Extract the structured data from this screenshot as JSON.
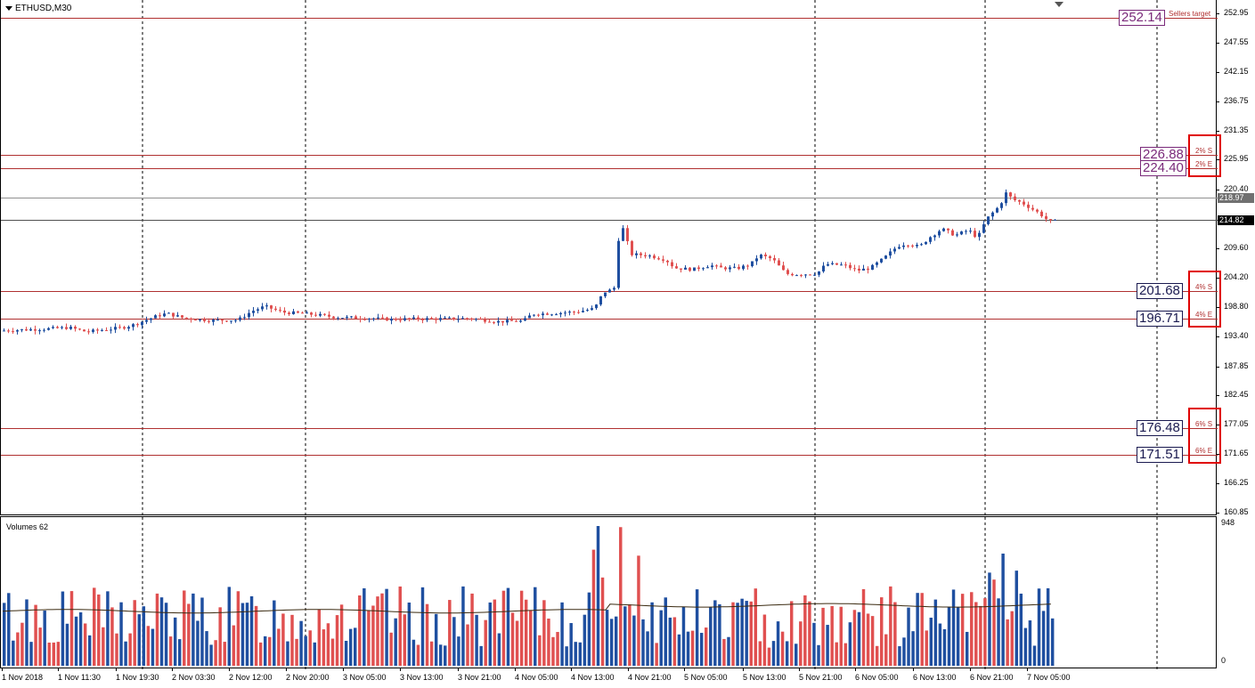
{
  "chart_title": "ETHUSD,M30",
  "volume_title": "Volumes 62",
  "colors": {
    "bull": "#1f4fa0",
    "bear": "#e05050",
    "level_line": "#b03030",
    "level_label": "#7a2a7a",
    "dark_label": "#1a1a50",
    "ma": "#3a2a10",
    "grid": "#000000"
  },
  "icons": {
    "collapse_arrow": "triangle-down",
    "shift_marker": "triangle-down"
  },
  "price_axis": {
    "min": 160.85,
    "max": 252.95,
    "ticks": [
      "252.95",
      "247.55",
      "242.15",
      "236.75",
      "231.35",
      "225.95",
      "220.40",
      "209.60",
      "204.20",
      "198.80",
      "193.40",
      "187.85",
      "182.45",
      "177.05",
      "171.65",
      "166.25",
      "160.85"
    ],
    "tick_values": [
      252.95,
      247.55,
      242.15,
      236.75,
      231.35,
      225.95,
      220.4,
      209.6,
      204.2,
      198.8,
      193.4,
      187.85,
      182.45,
      177.05,
      171.65,
      166.25,
      160.85
    ]
  },
  "volume_axis": {
    "max_label": "948",
    "min_label": "0",
    "max": 948
  },
  "current_prices": [
    {
      "value": 218.97,
      "label": "218.97",
      "bg": "#707070"
    },
    {
      "value": 214.82,
      "label": "214.82",
      "bg": "#000000"
    }
  ],
  "levels": [
    {
      "value": 252.14,
      "label": "252.14",
      "tag": "Sellers target",
      "style": "purple"
    },
    {
      "value": 226.88,
      "label": "226.88",
      "tag": "2% S",
      "style": "purple"
    },
    {
      "value": 224.4,
      "label": "224.40",
      "tag": "2% E",
      "style": "purple"
    },
    {
      "value": 201.68,
      "label": "201.68",
      "tag": "4% S",
      "style": "dark"
    },
    {
      "value": 196.71,
      "label": "196.71",
      "tag": "4% E",
      "style": "dark"
    },
    {
      "value": 176.48,
      "label": "176.48",
      "tag": "6% S",
      "style": "dark"
    },
    {
      "value": 171.51,
      "label": "171.51",
      "tag": "6% E",
      "style": "dark"
    }
  ],
  "time_labels": [
    "1 Nov 2018",
    "1 Nov 11:30",
    "1 Nov 19:30",
    "2 Nov 03:30",
    "2 Nov 12:00",
    "2 Nov 20:00",
    "3 Nov 05:00",
    "3 Nov 13:00",
    "3 Nov 21:00",
    "4 Nov 05:00",
    "4 Nov 13:00",
    "4 Nov 21:00",
    "5 Nov 05:00",
    "5 Nov 13:00",
    "5 Nov 21:00",
    "6 Nov 05:00",
    "6 Nov 13:00",
    "6 Nov 21:00",
    "7 Nov 05:00"
  ],
  "chart_data": {
    "type": "candlestick",
    "title": "ETHUSD,M30",
    "timeframe": "M30",
    "ylim": [
      160.85,
      252.95
    ],
    "period_separators": [
      "1 Nov 19:30",
      "2 Nov 20:00",
      "5 Nov 21:00",
      "6 Nov 21:00",
      "7 Nov 12:00"
    ],
    "price_path": [
      [
        0,
        194.4
      ],
      [
        30,
        194.6
      ],
      [
        60,
        194.8
      ],
      [
        80,
        195.0
      ],
      [
        100,
        194.2
      ],
      [
        120,
        194.6
      ],
      [
        140,
        195.0
      ],
      [
        155,
        195.6
      ],
      [
        165,
        196.3
      ],
      [
        180,
        197.2
      ],
      [
        190,
        197.6
      ],
      [
        210,
        196.7
      ],
      [
        240,
        196.3
      ],
      [
        270,
        196.4
      ],
      [
        285,
        198.0
      ],
      [
        300,
        198.9
      ],
      [
        320,
        197.8
      ],
      [
        340,
        197.6
      ],
      [
        360,
        197.3
      ],
      [
        380,
        196.9
      ],
      [
        400,
        196.8
      ],
      [
        420,
        196.7
      ],
      [
        440,
        196.5
      ],
      [
        470,
        196.6
      ],
      [
        500,
        196.6
      ],
      [
        530,
        196.7
      ],
      [
        560,
        196.1
      ],
      [
        590,
        196.2
      ],
      [
        600,
        197.5
      ],
      [
        620,
        197.6
      ],
      [
        650,
        197.9
      ],
      [
        670,
        198.5
      ],
      [
        680,
        201.5
      ],
      [
        690,
        202.0
      ],
      [
        695,
        202.8
      ],
      [
        698,
        215.5
      ],
      [
        705,
        211.5
      ],
      [
        712,
        208.5
      ],
      [
        730,
        208.3
      ],
      [
        750,
        207.5
      ],
      [
        760,
        206.0
      ],
      [
        780,
        205.7
      ],
      [
        800,
        206.5
      ],
      [
        810,
        206.0
      ],
      [
        830,
        205.9
      ],
      [
        845,
        206.6
      ],
      [
        855,
        208.4
      ],
      [
        870,
        207.6
      ],
      [
        885,
        204.9
      ],
      [
        900,
        204.8
      ],
      [
        920,
        205.0
      ],
      [
        930,
        206.7
      ],
      [
        950,
        206.5
      ],
      [
        965,
        205.5
      ],
      [
        980,
        206.0
      ],
      [
        995,
        207.8
      ],
      [
        1010,
        210.0
      ],
      [
        1020,
        210.5
      ],
      [
        1035,
        209.9
      ],
      [
        1045,
        211.5
      ],
      [
        1060,
        213.2
      ],
      [
        1075,
        212.0
      ],
      [
        1090,
        213.0
      ],
      [
        1100,
        211.5
      ],
      [
        1110,
        215.0
      ],
      [
        1125,
        217.5
      ],
      [
        1132,
        219.8
      ],
      [
        1140,
        218.6
      ],
      [
        1150,
        218.0
      ],
      [
        1160,
        217.0
      ],
      [
        1170,
        216.0
      ],
      [
        1180,
        214.6
      ]
    ],
    "volume": {
      "series_name": "Volumes",
      "period": 62,
      "bar_count": 234,
      "peak": 948,
      "average_level": 370
    }
  }
}
